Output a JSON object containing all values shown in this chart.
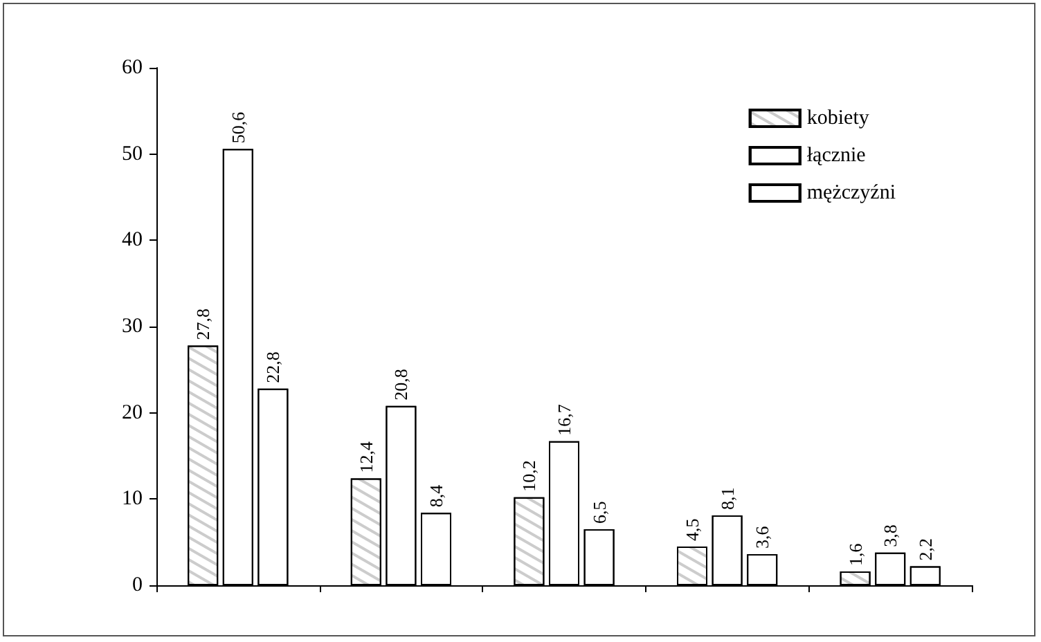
{
  "chart_data": {
    "type": "bar",
    "categories": [
      null,
      null,
      null,
      null,
      null
    ],
    "series": [
      {
        "name": "kobiety",
        "color": "#ffffff",
        "values": [
          27.8,
          12.4,
          10.2,
          4.5,
          1.6
        ],
        "value_labels": [
          "27,8",
          "12,4",
          "10,2",
          "4,5",
          "1,6"
        ]
      },
      {
        "name": "łącznie",
        "color": "#ffffff",
        "values": [
          50.6,
          20.8,
          16.7,
          8.1,
          3.8
        ],
        "value_labels": [
          "50,6",
          "20,8",
          "16,7",
          "8,1",
          "3,8"
        ]
      },
      {
        "name": "mężczyźni",
        "color": "#ffffff",
        "values": [
          22.8,
          8.4,
          6.5,
          3.6,
          2.2
        ],
        "value_labels": [
          "22,8",
          "8,4",
          "6,5",
          "3,6",
          "2,2"
        ]
      }
    ],
    "ylim": [
      0,
      60
    ],
    "yticks": [
      0,
      10,
      20,
      30,
      40,
      50,
      60
    ],
    "grid": false,
    "legend": "top right"
  }
}
